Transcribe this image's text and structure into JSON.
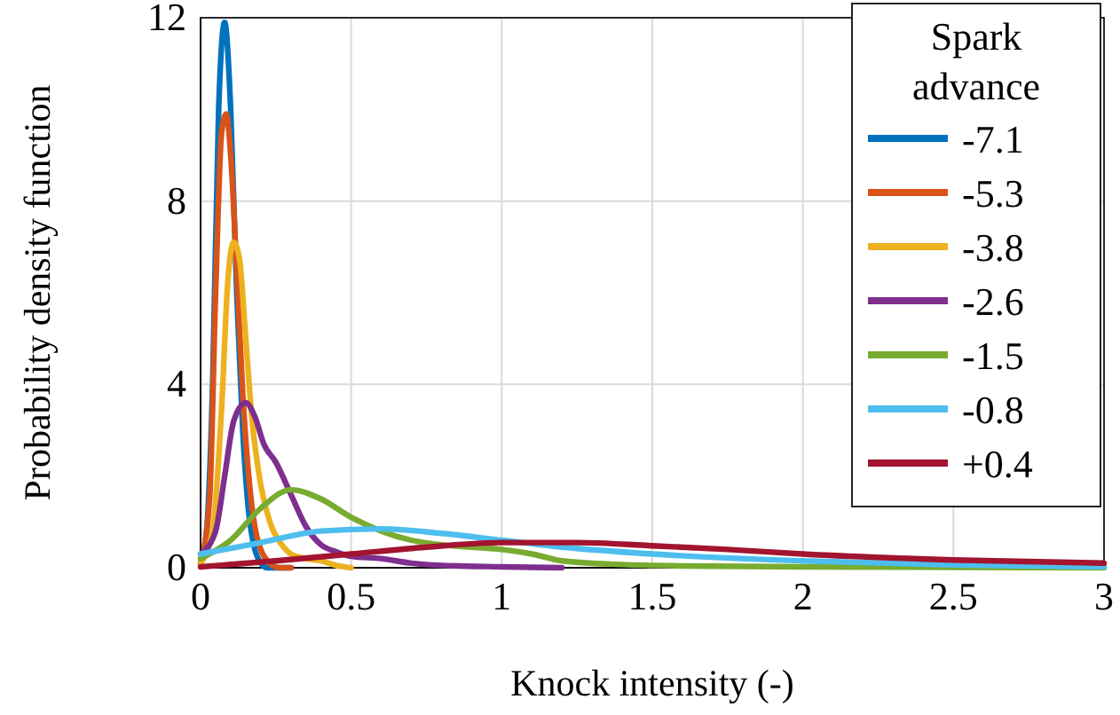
{
  "chart_data": {
    "type": "line",
    "xlabel": "Knock intensity (-)",
    "ylabel": "Probability density function",
    "legend_title": "Spark advance",
    "xlim": [
      0,
      3
    ],
    "ylim": [
      0,
      12
    ],
    "xticks": [
      0,
      0.5,
      1,
      1.5,
      2,
      2.5,
      3
    ],
    "yticks": [
      0,
      4,
      8,
      12
    ],
    "grid": true,
    "legend": "right",
    "marker": "none",
    "line_style": "solid",
    "series": [
      {
        "name": "-7.1",
        "color": "#0072bd",
        "x": [
          0,
          0.02,
          0.04,
          0.06,
          0.08,
          0.1,
          0.12,
          0.14,
          0.16,
          0.18,
          0.2,
          0.22,
          0.25,
          0.3
        ],
        "values": [
          0.1,
          0.8,
          4,
          10,
          11.9,
          10,
          6,
          3,
          1.2,
          0.4,
          0.1,
          0,
          0,
          0
        ]
      },
      {
        "name": "-5.3",
        "color": "#d95319",
        "x": [
          0,
          0.03,
          0.05,
          0.07,
          0.085,
          0.1,
          0.12,
          0.14,
          0.16,
          0.18,
          0.2,
          0.23,
          0.26,
          0.3
        ],
        "values": [
          0.1,
          1.5,
          6,
          9.5,
          9.9,
          9,
          6.5,
          3.8,
          2,
          0.9,
          0.4,
          0.1,
          0,
          0
        ]
      },
      {
        "name": "-3.8",
        "color": "#edb120",
        "x": [
          0,
          0.04,
          0.07,
          0.09,
          0.11,
          0.13,
          0.15,
          0.17,
          0.2,
          0.23,
          0.27,
          0.3,
          0.35,
          0.4,
          0.45,
          0.5
        ],
        "values": [
          0.1,
          0.8,
          3.5,
          6.2,
          7.1,
          6.7,
          5,
          3.3,
          1.8,
          1,
          0.5,
          0.3,
          0.2,
          0.15,
          0.05,
          0
        ]
      },
      {
        "name": "-2.6",
        "color": "#7e2f8e",
        "x": [
          0,
          0.05,
          0.08,
          0.11,
          0.15,
          0.18,
          0.21,
          0.25,
          0.3,
          0.35,
          0.4,
          0.45,
          0.5,
          0.6,
          0.7,
          0.8,
          1,
          1.2
        ],
        "values": [
          0.3,
          0.8,
          2,
          3.2,
          3.6,
          3.3,
          2.7,
          2.3,
          1.6,
          0.9,
          0.5,
          0.35,
          0.25,
          0.2,
          0.1,
          0.05,
          0.02,
          0
        ]
      },
      {
        "name": "-1.5",
        "color": "#77ac30",
        "x": [
          0,
          0.1,
          0.2,
          0.3,
          0.4,
          0.5,
          0.6,
          0.7,
          0.8,
          0.9,
          1,
          1.1,
          1.2,
          1.4,
          1.6,
          2,
          2.5,
          3
        ],
        "values": [
          0.2,
          0.6,
          1.3,
          1.7,
          1.5,
          1.1,
          0.8,
          0.6,
          0.5,
          0.45,
          0.4,
          0.3,
          0.15,
          0.07,
          0.04,
          0.02,
          0.01,
          0
        ]
      },
      {
        "name": "-0.8",
        "color": "#4dbeee",
        "x": [
          0,
          0.2,
          0.4,
          0.6,
          0.8,
          1,
          1.2,
          1.5,
          2,
          2.5,
          3
        ],
        "values": [
          0.3,
          0.55,
          0.8,
          0.85,
          0.75,
          0.6,
          0.45,
          0.3,
          0.15,
          0.06,
          0.02
        ]
      },
      {
        "name": "+0.4",
        "color": "#a2142f",
        "x": [
          0,
          0.25,
          0.5,
          0.75,
          1,
          1.25,
          1.5,
          1.75,
          2,
          2.5,
          3
        ],
        "values": [
          0.02,
          0.15,
          0.3,
          0.45,
          0.55,
          0.55,
          0.48,
          0.4,
          0.3,
          0.17,
          0.1
        ]
      }
    ]
  }
}
